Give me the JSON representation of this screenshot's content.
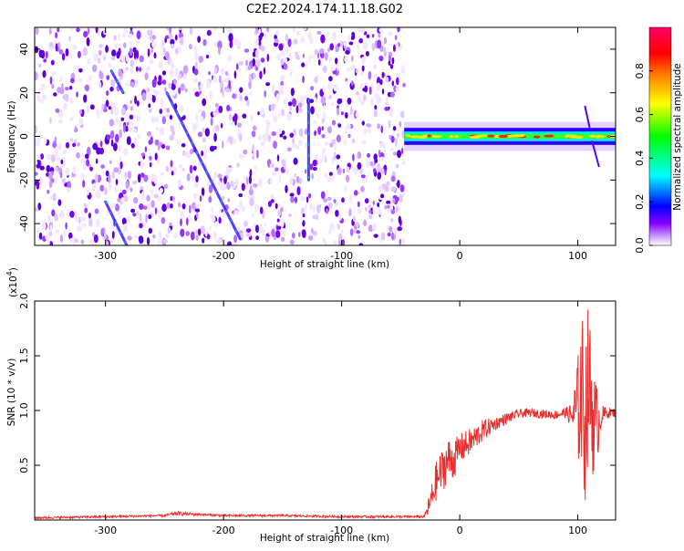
{
  "title": "C2E2.2024.174.11.18.G02",
  "chart_data": [
    {
      "type": "heatmap",
      "xlabel": "Height of straight line (km)",
      "ylabel": "Frequency (Hz)",
      "xlim": [
        -360,
        132
      ],
      "ylim": [
        -50,
        50
      ],
      "x_ticks": [
        -300,
        -200,
        -100,
        0,
        100
      ],
      "x_tick_labels": [
        "-300",
        "-200",
        "-100",
        "0",
        "100"
      ],
      "y_ticks": [
        -40,
        -20,
        0,
        20,
        40
      ],
      "y_tick_labels": [
        "-40",
        "-20",
        "0",
        "20",
        "40"
      ],
      "colorbar": {
        "label": "Normalized spectral amplitude",
        "range": [
          0,
          1
        ],
        "ticks": [
          0.0,
          0.2,
          0.4,
          0.6,
          0.8
        ],
        "tick_labels": [
          "0.0",
          "0.2",
          "0.4",
          "0.6",
          "0.8"
        ],
        "colors": [
          "#ffffff",
          "#8a00ff",
          "#0000ff",
          "#00ffff",
          "#00ff00",
          "#ffff00",
          "#ff8000",
          "#ff0000",
          "#ff0066"
        ]
      },
      "noise_region_x": [
        -360,
        -47
      ],
      "signal_band": {
        "x": [
          -47,
          132
        ],
        "center_hz": 0,
        "half_width_hz": 3
      },
      "streaks": [
        {
          "x": [
            -248,
            -186
          ],
          "y": [
            20,
            -47
          ]
        },
        {
          "x": [
            -300,
            -282
          ],
          "y": [
            -30,
            -50
          ]
        },
        {
          "x": [
            -128,
            -128
          ],
          "y": [
            17,
            -20
          ]
        },
        {
          "x": [
            -295,
            -285
          ],
          "y": [
            30,
            20
          ]
        }
      ],
      "grid": false
    },
    {
      "type": "line",
      "xlabel": "Height of straight line (km)",
      "ylabel": "SNR (10 * v/v)",
      "y_multiplier": "(x10",
      "y_multiplier_exp": "4",
      "y_multiplier_close": ")",
      "xlim": [
        -360,
        132
      ],
      "ylim": [
        0,
        2.0
      ],
      "x_ticks": [
        -300,
        -200,
        -100,
        0,
        100
      ],
      "x_tick_labels": [
        "-300",
        "-200",
        "-100",
        "0",
        "100"
      ],
      "y_ticks": [
        0.5,
        1.0,
        1.5,
        2.0
      ],
      "y_tick_labels": [
        "0.5",
        "1.0",
        "1.5",
        "2.0"
      ],
      "series": [
        {
          "color": "#e8302f",
          "x": [
            -360,
            -300,
            -250,
            -240,
            -220,
            -200,
            -150,
            -100,
            -60,
            -30,
            -25,
            -20,
            -15,
            -10,
            -5,
            0,
            10,
            20,
            30,
            40,
            50,
            60,
            70,
            80,
            90,
            95,
            100,
            103,
            106,
            109,
            112,
            115,
            120,
            125,
            132
          ],
          "y": [
            0.02,
            0.03,
            0.04,
            0.06,
            0.05,
            0.04,
            0.04,
            0.03,
            0.03,
            0.03,
            0.15,
            0.35,
            0.45,
            0.55,
            0.55,
            0.65,
            0.72,
            0.82,
            0.88,
            0.93,
            0.97,
            0.98,
            0.97,
            0.96,
            0.98,
            0.95,
            1.0,
            1.2,
            0.9,
            1.3,
            1.0,
            0.85,
            0.95,
            0.98,
            0.98
          ],
          "noise": [
            0.01,
            0.01,
            0.01,
            0.02,
            0.01,
            0.01,
            0.01,
            0.01,
            0.01,
            0.01,
            0.12,
            0.18,
            0.2,
            0.2,
            0.18,
            0.14,
            0.12,
            0.1,
            0.06,
            0.05,
            0.04,
            0.04,
            0.04,
            0.04,
            0.05,
            0.12,
            0.5,
            0.75,
            0.8,
            0.7,
            0.6,
            0.45,
            0.1,
            0.05,
            0.04
          ]
        }
      ],
      "grid": false
    }
  ]
}
